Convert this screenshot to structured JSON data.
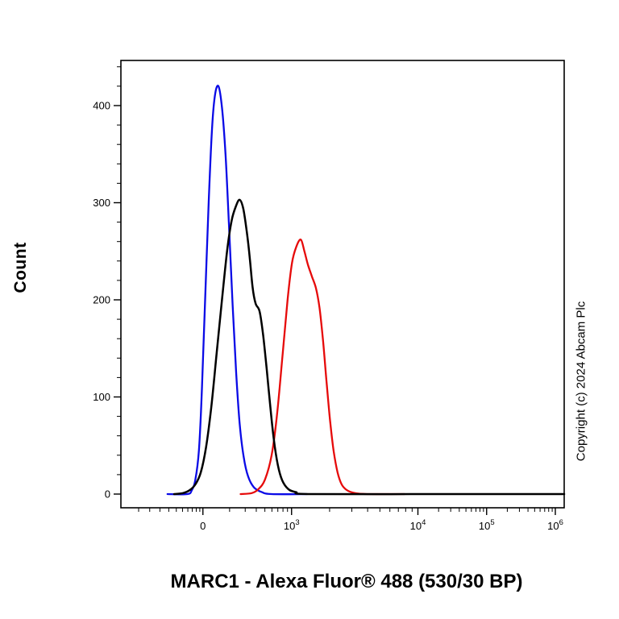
{
  "figure": {
    "x_axis_title": "MARC1 - Alexa Fluor® 488 (530/30 BP)",
    "y_axis_title": "Count",
    "copyright": "Copyright (c) 2024 Abcam Plc"
  },
  "axis": {
    "y_ticks": [
      0,
      100,
      200,
      300,
      400
    ],
    "y_minor_step": 20,
    "x_ticks": [
      {
        "base": "0",
        "exp": null,
        "frac": 0.185
      },
      {
        "base": "10",
        "exp": "3",
        "frac": 0.385
      },
      {
        "base": "10",
        "exp": "4",
        "frac": 0.67
      },
      {
        "base": "10",
        "exp": "5",
        "frac": 0.825
      },
      {
        "base": "10",
        "exp": "6",
        "frac": 0.98
      }
    ]
  },
  "colors": {
    "blue": "#0a0ae6",
    "black": "#000000",
    "red": "#e60a0a",
    "frame": "#000000",
    "background": "#ffffff"
  },
  "chart_data": {
    "type": "line",
    "subtype": "flow-cytometry-histogram-overlay",
    "title": "",
    "xlabel": "MARC1 - Alexa Fluor® 488 (530/30 BP)",
    "ylabel": "Count",
    "x_scale": "biexponential (logicle); labeled ticks at 0, 1e3, 1e4, 1e5, 1e6",
    "x_tick_values": [
      "0",
      "1e3",
      "1e4",
      "1e5",
      "1e6"
    ],
    "ylim": [
      0,
      445
    ],
    "grid": false,
    "legend": "none",
    "series": [
      {
        "name": "blue-control-curve",
        "color": "#0a0ae6",
        "z": 1,
        "line_width": 2.3,
        "peak": {
          "x_frac": 0.22,
          "count": 420
        },
        "points": [
          [
            0.105,
            0
          ],
          [
            0.15,
            0
          ],
          [
            0.16,
            4
          ],
          [
            0.168,
            15
          ],
          [
            0.176,
            45
          ],
          [
            0.183,
            110
          ],
          [
            0.19,
            200
          ],
          [
            0.198,
            300
          ],
          [
            0.205,
            372
          ],
          [
            0.212,
            410
          ],
          [
            0.22,
            420
          ],
          [
            0.228,
            398
          ],
          [
            0.236,
            350
          ],
          [
            0.244,
            275
          ],
          [
            0.252,
            195
          ],
          [
            0.26,
            125
          ],
          [
            0.268,
            72
          ],
          [
            0.277,
            38
          ],
          [
            0.287,
            18
          ],
          [
            0.3,
            7
          ],
          [
            0.318,
            2
          ],
          [
            0.34,
            0
          ],
          [
            0.42,
            0
          ]
        ]
      },
      {
        "name": "red-MARC1-curve",
        "color": "#e60a0a",
        "z": 2,
        "line_width": 2.3,
        "peak": {
          "x_frac": 0.406,
          "count": 262
        },
        "points": [
          [
            0.27,
            0
          ],
          [
            0.295,
            1
          ],
          [
            0.31,
            5
          ],
          [
            0.325,
            15
          ],
          [
            0.34,
            40
          ],
          [
            0.353,
            85
          ],
          [
            0.365,
            145
          ],
          [
            0.376,
            200
          ],
          [
            0.386,
            238
          ],
          [
            0.396,
            255
          ],
          [
            0.406,
            262
          ],
          [
            0.414,
            250
          ],
          [
            0.422,
            236
          ],
          [
            0.431,
            224
          ],
          [
            0.44,
            212
          ],
          [
            0.448,
            192
          ],
          [
            0.456,
            158
          ],
          [
            0.464,
            115
          ],
          [
            0.472,
            75
          ],
          [
            0.48,
            44
          ],
          [
            0.489,
            22
          ],
          [
            0.498,
            10
          ],
          [
            0.51,
            4
          ],
          [
            0.528,
            1
          ],
          [
            0.555,
            0
          ],
          [
            0.64,
            0
          ]
        ]
      },
      {
        "name": "black-control-curve",
        "color": "#000000",
        "z": 3,
        "line_width": 2.5,
        "peak": {
          "x_frac": 0.268,
          "count": 303
        },
        "points": [
          [
            0.12,
            0
          ],
          [
            0.14,
            1
          ],
          [
            0.155,
            4
          ],
          [
            0.168,
            10
          ],
          [
            0.18,
            22
          ],
          [
            0.192,
            48
          ],
          [
            0.204,
            90
          ],
          [
            0.216,
            145
          ],
          [
            0.228,
            200
          ],
          [
            0.24,
            252
          ],
          [
            0.25,
            282
          ],
          [
            0.26,
            297
          ],
          [
            0.268,
            303
          ],
          [
            0.276,
            294
          ],
          [
            0.284,
            270
          ],
          [
            0.291,
            242
          ],
          [
            0.297,
            213
          ],
          [
            0.304,
            196
          ],
          [
            0.313,
            188
          ],
          [
            0.321,
            163
          ],
          [
            0.329,
            128
          ],
          [
            0.337,
            90
          ],
          [
            0.345,
            56
          ],
          [
            0.354,
            30
          ],
          [
            0.364,
            14
          ],
          [
            0.378,
            5
          ],
          [
            0.395,
            2
          ],
          [
            0.425,
            0
          ],
          [
            0.7,
            0
          ],
          [
            1.0,
            0
          ]
        ]
      }
    ]
  }
}
